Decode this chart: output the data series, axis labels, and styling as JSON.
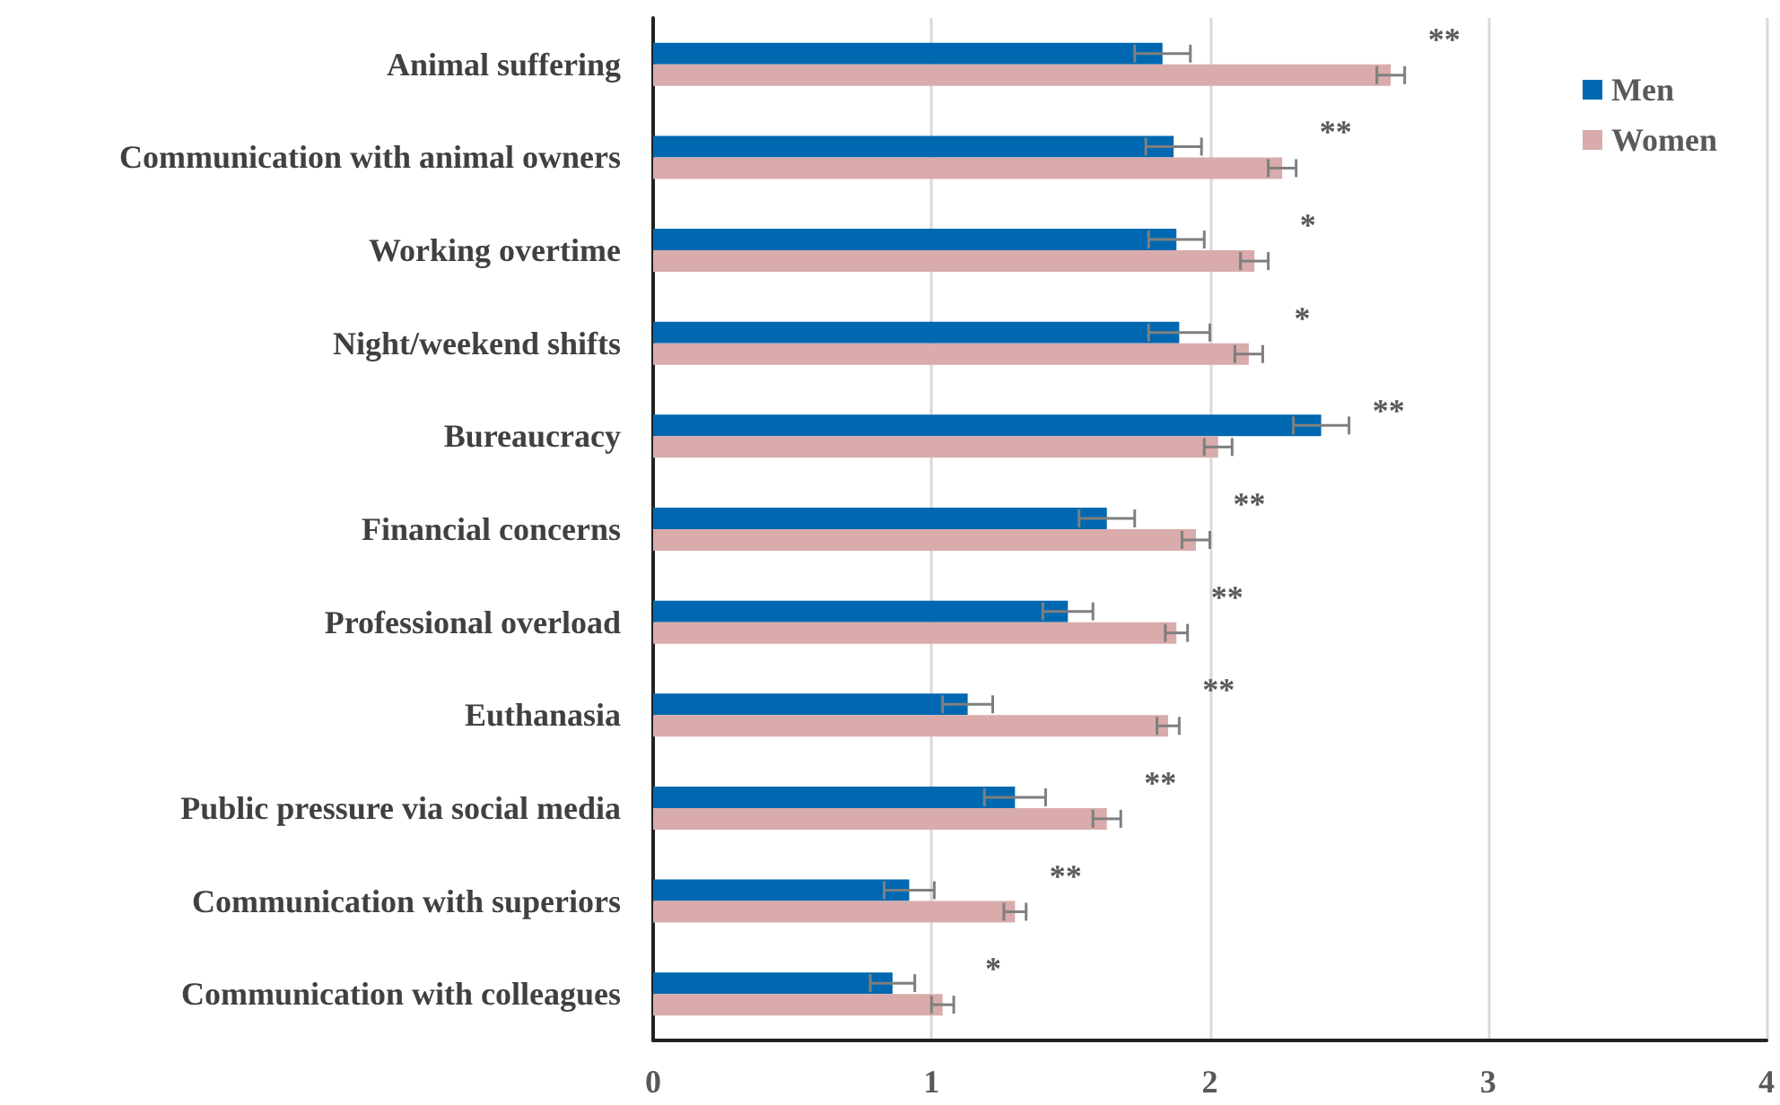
{
  "chart_data": {
    "type": "bar",
    "orientation": "horizontal",
    "categories": [
      "Animal suffering",
      "Communication with animal owners",
      "Working overtime",
      "Night/weekend shifts",
      "Bureaucracy",
      "Financial concerns",
      "Professional overload",
      "Euthanasia",
      "Public pressure via social media",
      "Communication with superiors",
      "Communication with colleagues"
    ],
    "series": [
      {
        "name": "Men",
        "color": "#0068b0",
        "values": [
          1.83,
          1.87,
          1.88,
          1.89,
          2.4,
          1.63,
          1.49,
          1.13,
          1.3,
          0.92,
          0.86
        ],
        "errors": [
          0.1,
          0.1,
          0.1,
          0.11,
          0.1,
          0.1,
          0.09,
          0.09,
          0.11,
          0.09,
          0.08
        ]
      },
      {
        "name": "Women",
        "color": "#d9abab",
        "values": [
          2.65,
          2.26,
          2.16,
          2.14,
          2.03,
          1.95,
          1.88,
          1.85,
          1.63,
          1.3,
          1.04
        ],
        "errors": [
          0.05,
          0.05,
          0.05,
          0.05,
          0.05,
          0.05,
          0.04,
          0.04,
          0.05,
          0.04,
          0.04
        ]
      }
    ],
    "xlim": [
      0,
      4
    ],
    "xticks": [
      0,
      1,
      2,
      3,
      4
    ],
    "grid": "x",
    "legend": "top right",
    "annotations": [
      "**",
      "**",
      "*",
      "*",
      "**",
      "**",
      "**",
      "**",
      "**",
      "**",
      "*"
    ]
  }
}
